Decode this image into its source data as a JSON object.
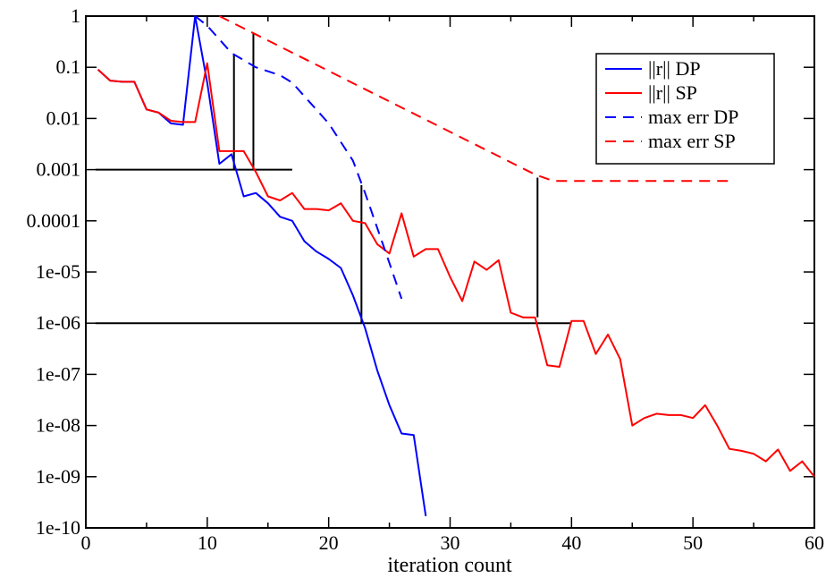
{
  "chart_data": {
    "type": "line",
    "title": "",
    "xlabel": "iteration count",
    "ylabel": "",
    "y_scale": "log",
    "xlim": [
      0,
      60
    ],
    "ylim": [
      1e-10,
      1
    ],
    "x_ticks": [
      0,
      10,
      20,
      30,
      40,
      50,
      60
    ],
    "x_tick_labels": [
      "0",
      "10",
      "20",
      "30",
      "40",
      "50",
      "60"
    ],
    "y_ticks": [
      1,
      0.1,
      0.01,
      0.001,
      0.0001,
      1e-05,
      1e-06,
      1e-07,
      1e-08,
      1e-09,
      1e-10
    ],
    "y_tick_labels": [
      "1",
      "0.1",
      "0.01",
      "0.001",
      "0.0001",
      "1e-05",
      "1e-06",
      "1e-07",
      "1e-08",
      "1e-09",
      "1e-10"
    ],
    "grid": false,
    "legend_position": "top-right",
    "series": [
      {
        "name": "||r|| DP",
        "color": "#0000ff",
        "dash": "solid",
        "x": [
          1,
          2,
          3,
          4,
          5,
          6,
          7,
          8,
          9,
          10,
          11,
          12,
          13,
          14,
          15,
          16,
          17,
          18,
          19,
          20,
          21,
          22,
          23,
          24,
          25,
          26,
          27,
          28
        ],
        "y": [
          0.09,
          0.055,
          0.052,
          0.052,
          0.015,
          0.013,
          0.008,
          0.0075,
          1.0,
          0.05,
          0.0013,
          0.002,
          0.0003,
          0.00035,
          0.00022,
          0.00012,
          0.0001,
          4e-05,
          2.5e-05,
          1.8e-05,
          1.2e-05,
          3.5e-06,
          8e-07,
          1.2e-07,
          2.5e-08,
          7e-09,
          6.5e-09,
          1.7e-10
        ]
      },
      {
        "name": "||r|| SP",
        "color": "#ff0000",
        "dash": "solid",
        "x": [
          1,
          2,
          3,
          4,
          5,
          6,
          7,
          8,
          9,
          10,
          11,
          12,
          13,
          14,
          15,
          16,
          17,
          18,
          19,
          20,
          21,
          22,
          23,
          24,
          25,
          26,
          27,
          28,
          29,
          30,
          31,
          32,
          33,
          34,
          35,
          36,
          37,
          38,
          39,
          40,
          41,
          42,
          43,
          44,
          45,
          46,
          47,
          48,
          49,
          50,
          51,
          52,
          53,
          54,
          55,
          56,
          57,
          58,
          59,
          60
        ],
        "y": [
          0.09,
          0.055,
          0.052,
          0.052,
          0.015,
          0.013,
          0.009,
          0.0085,
          0.0085,
          0.12,
          0.0023,
          0.0023,
          0.0023,
          0.0009,
          0.0003,
          0.00025,
          0.00035,
          0.00017,
          0.00017,
          0.00016,
          0.00022,
          0.0001,
          9e-05,
          3.5e-05,
          2.3e-05,
          0.00014,
          2e-05,
          2.8e-05,
          2.8e-05,
          8e-06,
          2.7e-06,
          1.6e-05,
          1.1e-05,
          1.7e-05,
          1.6e-06,
          1.3e-06,
          1.3e-06,
          1.5e-07,
          1.4e-07,
          1.1e-06,
          1.1e-06,
          2.5e-07,
          6e-07,
          2e-07,
          1e-08,
          1.4e-08,
          1.7e-08,
          1.6e-08,
          1.6e-08,
          1.4e-08,
          2.5e-08,
          1e-08,
          3.5e-09,
          3.2e-09,
          2.8e-09,
          2e-09,
          3.4e-09,
          1.3e-09,
          2e-09,
          1e-09
        ]
      },
      {
        "name": "max err DP",
        "color": "#0000ff",
        "dash": "dashed",
        "x": [
          9,
          10,
          12,
          14,
          16,
          17,
          20,
          22,
          23,
          25,
          26
        ],
        "y": [
          1.0,
          0.65,
          0.19,
          0.1,
          0.07,
          0.05,
          0.008,
          0.0015,
          0.00035,
          1.5e-05,
          3e-06
        ]
      },
      {
        "name": "max err SP",
        "color": "#ff0000",
        "dash": "dashed",
        "x": [
          11,
          37,
          38.5,
          53
        ],
        "y": [
          1.0,
          0.0008,
          0.0006,
          0.0006
        ]
      }
    ],
    "reference_lines": [
      {
        "x": [
          0.8,
          17
        ],
        "y": [
          0.001,
          0.001
        ]
      },
      {
        "x": [
          0.8,
          40
        ],
        "y": [
          1e-06,
          1e-06
        ]
      },
      {
        "x": [
          12.2,
          12.2
        ],
        "y": [
          0.001,
          0.18
        ]
      },
      {
        "x": [
          13.8,
          13.8
        ],
        "y": [
          0.001,
          0.45
        ]
      },
      {
        "x": [
          22.7,
          22.7
        ],
        "y": [
          1e-06,
          0.0005
        ]
      },
      {
        "x": [
          37.2,
          37.2
        ],
        "y": [
          1.3e-06,
          0.0007
        ]
      }
    ]
  }
}
